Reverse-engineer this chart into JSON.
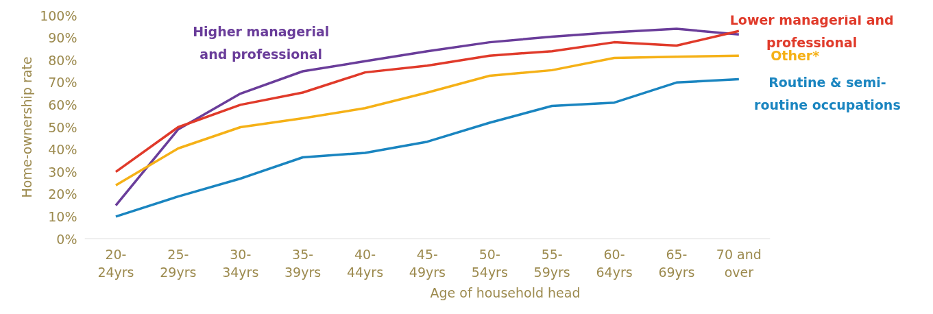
{
  "chart_data": {
    "type": "line",
    "xlabel": "Age of household head",
    "ylabel": "Home-ownership rate",
    "categories": [
      "20-\n24yrs",
      "25-\n29yrs",
      "30-\n34yrs",
      "35-\n39yrs",
      "40-\n44yrs",
      "45-\n49yrs",
      "50-\n54yrs",
      "55-\n59yrs",
      "60-\n64yrs",
      "65-\n69yrs",
      "70 and\nover"
    ],
    "ylim": [
      0,
      100
    ],
    "yticks": [
      {
        "value": 0,
        "label": "0%"
      },
      {
        "value": 10,
        "label": "10%"
      },
      {
        "value": 20,
        "label": "20%"
      },
      {
        "value": 30,
        "label": "30%"
      },
      {
        "value": 40,
        "label": "40%"
      },
      {
        "value": 50,
        "label": "50%"
      },
      {
        "value": 60,
        "label": "60%"
      },
      {
        "value": 70,
        "label": "70%"
      },
      {
        "value": 80,
        "label": "80%"
      },
      {
        "value": 90,
        "label": "90%"
      },
      {
        "value": 100,
        "label": "100%"
      }
    ],
    "grid": false,
    "legend": false,
    "marker": "none",
    "line_style": "solid",
    "series": [
      {
        "name": "Higher managerial\nand professional",
        "color": "#6a3d9a",
        "values": [
          15,
          49,
          65,
          75,
          79.5,
          84,
          88,
          90.5,
          92.5,
          94,
          91.5
        ]
      },
      {
        "name": "Lower managerial and\nprofessional",
        "color": "#e03a2a",
        "values": [
          30,
          50,
          60,
          65.5,
          74.5,
          77.5,
          82,
          84,
          88,
          86.5,
          93
        ]
      },
      {
        "name": "Other*",
        "color": "#f5b117",
        "values": [
          24,
          40.5,
          50,
          54,
          58.5,
          65.5,
          73,
          75.5,
          81,
          81.5,
          82
        ]
      },
      {
        "name": "Routine & semi-\nroutine occupations",
        "color": "#1a85c0",
        "values": [
          10,
          19,
          27,
          36.5,
          38.5,
          43.5,
          52,
          59.5,
          61,
          70,
          71.5
        ]
      }
    ]
  }
}
